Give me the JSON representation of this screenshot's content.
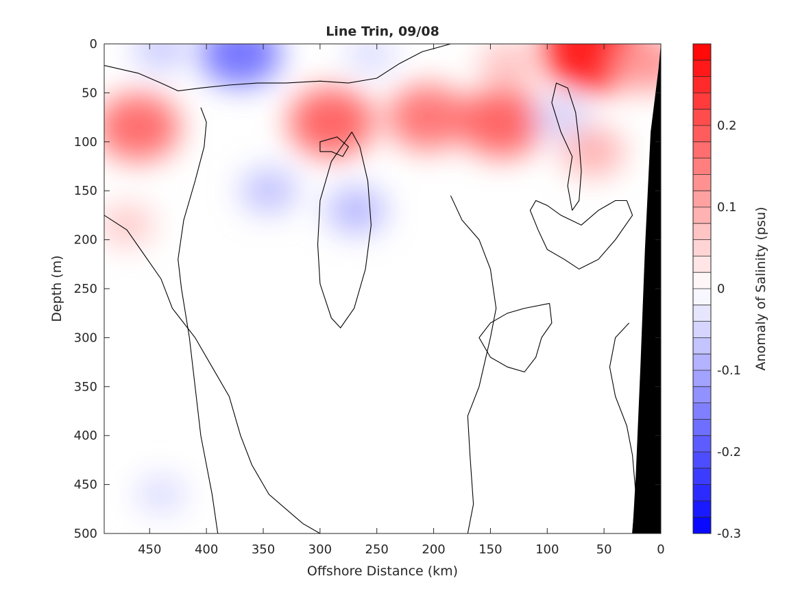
{
  "chart_data": {
    "type": "heatmap",
    "title": "Line Trin, 09/08",
    "xlabel": "Offshore Distance (km)",
    "ylabel": "Depth (m)",
    "xlim": [
      490,
      0
    ],
    "ylim": [
      0,
      500
    ],
    "x_reversed": true,
    "y_reversed": true,
    "x_ticks": [
      450,
      400,
      350,
      300,
      250,
      200,
      150,
      100,
      50,
      0
    ],
    "y_ticks": [
      0,
      50,
      100,
      150,
      200,
      250,
      300,
      350,
      400,
      450,
      500
    ],
    "colorbar": {
      "label": "Anomaly of Salinity (psu)",
      "range": [
        -0.3,
        0.3
      ],
      "ticks": [
        -0.3,
        -0.2,
        -0.1,
        0,
        0.1,
        0.2
      ],
      "tick_labels": [
        "-0.3",
        "-0.2",
        "-0.1",
        "0",
        "0.1",
        "0.2"
      ],
      "levels": 30,
      "negative_color": "#0000ff",
      "positive_color": "#ff0000",
      "zero_color": "#ffffff"
    },
    "features": [
      {
        "kind": "anomaly",
        "x": 370,
        "y": 10,
        "value": -0.16
      },
      {
        "kind": "anomaly",
        "x": 440,
        "y": 5,
        "value": -0.06
      },
      {
        "kind": "anomaly",
        "x": 255,
        "y": 10,
        "value": -0.04
      },
      {
        "kind": "anomaly",
        "x": 60,
        "y": 5,
        "value": 0.26
      },
      {
        "kind": "anomaly",
        "x": 10,
        "y": 20,
        "value": 0.12
      },
      {
        "kind": "anomaly",
        "x": 135,
        "y": 20,
        "value": 0.07
      },
      {
        "kind": "anomaly",
        "x": 460,
        "y": 85,
        "value": 0.17
      },
      {
        "kind": "anomaly",
        "x": 470,
        "y": 185,
        "value": 0.06
      },
      {
        "kind": "anomaly",
        "x": 345,
        "y": 150,
        "value": -0.07
      },
      {
        "kind": "anomaly",
        "x": 290,
        "y": 80,
        "value": 0.18
      },
      {
        "kind": "anomaly",
        "x": 268,
        "y": 170,
        "value": -0.08
      },
      {
        "kind": "anomaly",
        "x": 205,
        "y": 75,
        "value": 0.16
      },
      {
        "kind": "anomaly",
        "x": 140,
        "y": 80,
        "value": 0.18
      },
      {
        "kind": "anomaly",
        "x": 88,
        "y": 75,
        "value": -0.05
      },
      {
        "kind": "anomaly",
        "x": 60,
        "y": 110,
        "value": 0.09
      },
      {
        "kind": "anomaly",
        "x": 440,
        "y": 460,
        "value": -0.04
      }
    ],
    "zero_contours": [
      [
        [
          490,
          22
        ],
        [
          460,
          30
        ],
        [
          440,
          40
        ],
        [
          425,
          48
        ],
        [
          405,
          45
        ],
        [
          380,
          42
        ],
        [
          355,
          40
        ],
        [
          330,
          40
        ],
        [
          300,
          38
        ],
        [
          275,
          40
        ],
        [
          250,
          35
        ],
        [
          230,
          20
        ],
        [
          210,
          8
        ],
        [
          185,
          0
        ]
      ],
      [
        [
          490,
          175
        ],
        [
          470,
          190
        ],
        [
          455,
          215
        ],
        [
          440,
          240
        ],
        [
          430,
          270
        ],
        [
          410,
          300
        ],
        [
          395,
          330
        ],
        [
          380,
          360
        ],
        [
          370,
          400
        ],
        [
          360,
          430
        ],
        [
          345,
          460
        ],
        [
          330,
          475
        ],
        [
          315,
          490
        ],
        [
          300,
          500
        ]
      ],
      [
        [
          405,
          65
        ],
        [
          400,
          80
        ],
        [
          402,
          105
        ],
        [
          410,
          140
        ],
        [
          420,
          180
        ],
        [
          425,
          220
        ],
        [
          422,
          250
        ],
        [
          415,
          300
        ],
        [
          410,
          350
        ],
        [
          405,
          400
        ],
        [
          395,
          460
        ],
        [
          390,
          500
        ]
      ],
      [
        [
          300,
          110
        ],
        [
          290,
          110
        ],
        [
          280,
          115
        ],
        [
          275,
          105
        ],
        [
          285,
          95
        ],
        [
          300,
          100
        ],
        [
          300,
          110
        ]
      ],
      [
        [
          272,
          90
        ],
        [
          290,
          120
        ],
        [
          300,
          160
        ],
        [
          302,
          205
        ],
        [
          300,
          245
        ],
        [
          290,
          280
        ],
        [
          282,
          290
        ],
        [
          270,
          270
        ],
        [
          260,
          230
        ],
        [
          255,
          185
        ],
        [
          258,
          140
        ],
        [
          265,
          105
        ],
        [
          272,
          90
        ]
      ],
      [
        [
          78,
          170
        ],
        [
          82,
          145
        ],
        [
          78,
          115
        ],
        [
          88,
          90
        ],
        [
          96,
          60
        ],
        [
          92,
          40
        ],
        [
          82,
          45
        ],
        [
          75,
          70
        ],
        [
          72,
          100
        ],
        [
          70,
          130
        ],
        [
          72,
          160
        ],
        [
          78,
          170
        ]
      ],
      [
        [
          185,
          155
        ],
        [
          175,
          180
        ],
        [
          160,
          200
        ],
        [
          150,
          230
        ],
        [
          145,
          270
        ],
        [
          150,
          300
        ],
        [
          160,
          350
        ],
        [
          170,
          380
        ],
        [
          168,
          420
        ],
        [
          165,
          470
        ],
        [
          170,
          500
        ]
      ],
      [
        [
          30,
          160
        ],
        [
          25,
          175
        ],
        [
          40,
          200
        ],
        [
          55,
          220
        ],
        [
          72,
          230
        ],
        [
          85,
          220
        ],
        [
          100,
          210
        ],
        [
          108,
          190
        ],
        [
          115,
          170
        ],
        [
          110,
          160
        ],
        [
          100,
          165
        ],
        [
          88,
          175
        ],
        [
          70,
          185
        ],
        [
          55,
          170
        ],
        [
          40,
          160
        ],
        [
          30,
          160
        ]
      ],
      [
        [
          98,
          265
        ],
        [
          96,
          285
        ],
        [
          105,
          300
        ],
        [
          110,
          320
        ],
        [
          120,
          335
        ],
        [
          135,
          330
        ],
        [
          150,
          320
        ],
        [
          160,
          300
        ],
        [
          150,
          285
        ],
        [
          135,
          275
        ],
        [
          120,
          270
        ],
        [
          98,
          265
        ]
      ],
      [
        [
          25,
          500
        ],
        [
          22,
          460
        ],
        [
          25,
          420
        ],
        [
          30,
          390
        ],
        [
          40,
          360
        ],
        [
          45,
          330
        ],
        [
          40,
          300
        ],
        [
          32,
          290
        ],
        [
          28,
          285
        ]
      ]
    ],
    "bathymetry": [
      [
        0,
        0
      ],
      [
        0,
        500
      ],
      [
        25,
        500
      ],
      [
        22,
        440
      ],
      [
        18,
        330
      ],
      [
        14,
        210
      ],
      [
        9,
        90
      ],
      [
        2,
        25
      ],
      [
        0,
        0
      ]
    ]
  }
}
